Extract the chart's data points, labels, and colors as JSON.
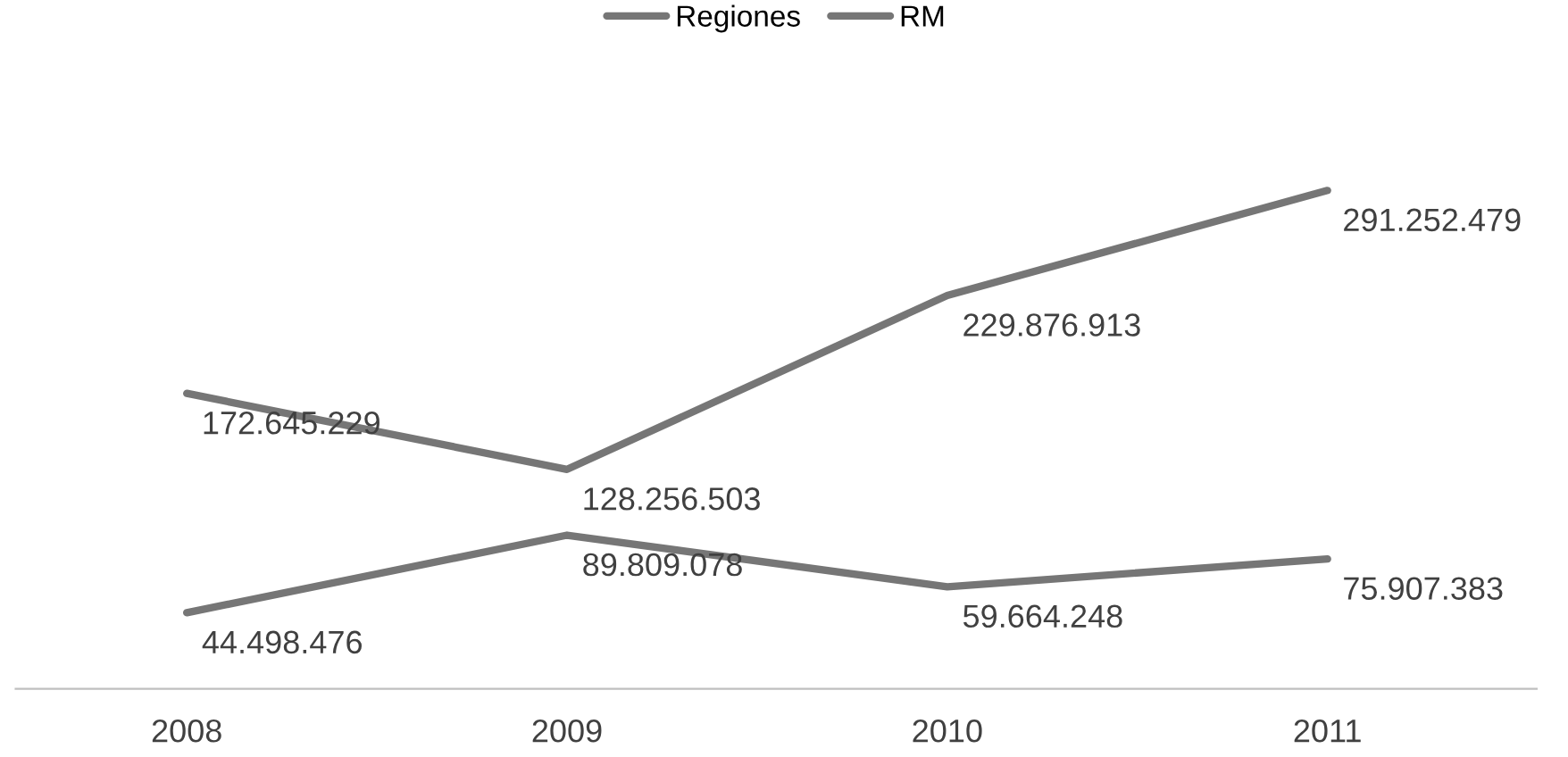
{
  "chart_data": {
    "type": "line",
    "categories": [
      "2008",
      "2009",
      "2010",
      "2011"
    ],
    "series": [
      {
        "name": "Regiones",
        "color": "#767676",
        "values": [
          172645229,
          128256503,
          229876913,
          291252479
        ],
        "value_labels": [
          "172.645.229",
          "128.256.503",
          "229.876.913",
          "291.252.479"
        ]
      },
      {
        "name": "RM",
        "color": "#767676",
        "values": [
          44498476,
          89809078,
          59664248,
          75907383
        ],
        "value_labels": [
          "44.498.476",
          "89.809.078",
          "59.664.248",
          "75.907.383"
        ]
      }
    ],
    "tick_labels": "x",
    "grid": false,
    "legend": "top",
    "marker": "none",
    "line_style": "solid"
  }
}
